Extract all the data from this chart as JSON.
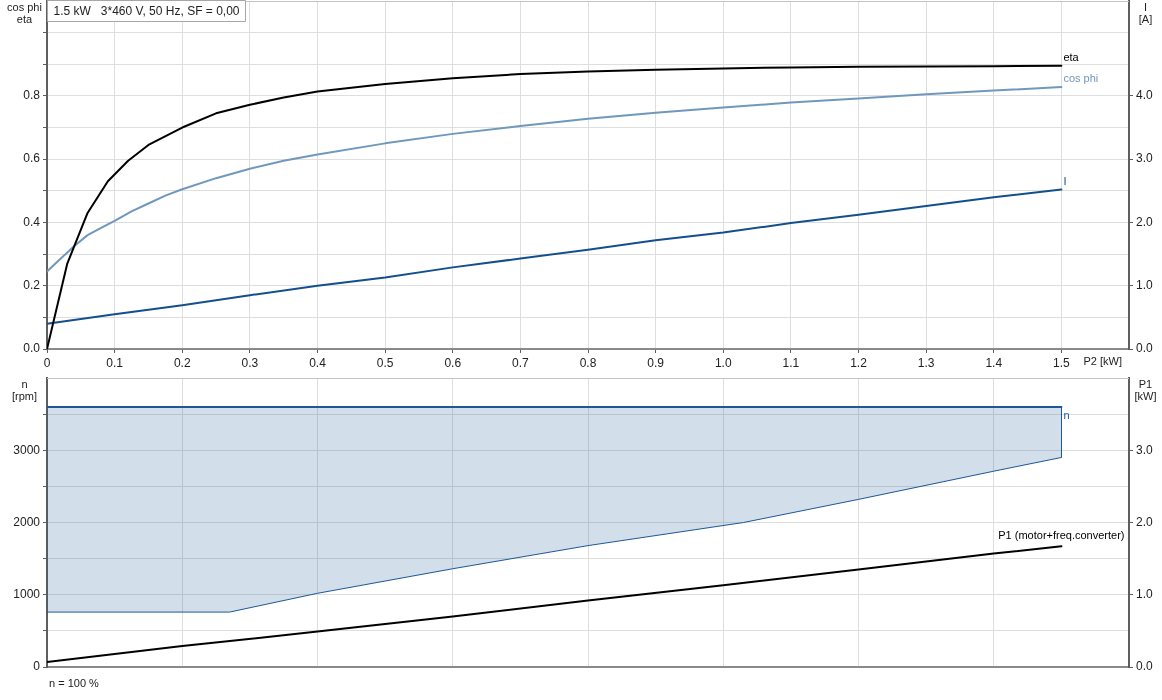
{
  "chart_data": [
    {
      "type": "line",
      "title": "1.5 kW   3*460 V, 50 Hz, SF = 0,00",
      "xlabel": "P2 [kW]",
      "ylabel": "cos phi\neta",
      "y2label": "I\n[A]",
      "xlim": [
        0,
        1.6
      ],
      "xticks": [
        0,
        0.1,
        0.2,
        0.3,
        0.4,
        0.5,
        0.6,
        0.7,
        0.8,
        0.9,
        {
          "value": 1,
          "label": "1.0"
        },
        1.1,
        1.2,
        1.3,
        1.4,
        1.5
      ],
      "ylim": [
        0,
        1.1
      ],
      "yticks": [
        {
          "value": 0,
          "label": "0.0"
        },
        {
          "value": 0.1,
          "label": null
        },
        0.2,
        {
          "value": 0.3,
          "label": null
        },
        0.4,
        {
          "value": 0.5,
          "label": null
        },
        0.6,
        {
          "value": 0.7,
          "label": null
        },
        0.8,
        {
          "value": 0.9,
          "label": null
        },
        {
          "value": 1,
          "label": null
        }
      ],
      "y2lim": [
        0,
        5.5
      ],
      "y2ticks": [
        {
          "value": 0,
          "label": "0.0"
        },
        {
          "value": 1,
          "label": "1.0"
        },
        {
          "value": 2,
          "label": "2.0"
        },
        {
          "value": 3,
          "label": "3.0"
        },
        {
          "value": 4,
          "label": "4.0"
        }
      ],
      "grid": true,
      "marker": "none",
      "series": [
        {
          "name": "eta",
          "color": "#000000",
          "x": [
            0,
            0.03,
            0.06,
            0.09,
            0.12,
            0.15,
            0.2,
            0.25,
            0.3,
            0.35,
            0.4,
            0.5,
            0.6,
            0.7,
            0.8,
            0.9,
            1.0,
            1.1,
            1.2,
            1.3,
            1.4,
            1.5
          ],
          "values": [
            0,
            0.27,
            0.43,
            0.53,
            0.595,
            0.645,
            0.7,
            0.745,
            0.772,
            0.795,
            0.814,
            0.838,
            0.856,
            0.869,
            0.877,
            0.883,
            0.887,
            0.89,
            0.892,
            0.893,
            0.894,
            0.895
          ]
        },
        {
          "name": "cos phi",
          "color": "#7098bd",
          "x": [
            0,
            0.02,
            0.04,
            0.06,
            0.08,
            0.1,
            0.125,
            0.15,
            0.175,
            0.2,
            0.25,
            0.3,
            0.35,
            0.4,
            0.5,
            0.6,
            0.7,
            0.8,
            0.9,
            1.0,
            1.1,
            1.2,
            1.3,
            1.4,
            1.5
          ],
          "values": [
            0.245,
            0.285,
            0.325,
            0.36,
            0.383,
            0.405,
            0.435,
            0.46,
            0.485,
            0.505,
            0.54,
            0.57,
            0.595,
            0.615,
            0.65,
            0.68,
            0.705,
            0.728,
            0.747,
            0.763,
            0.779,
            0.792,
            0.805,
            0.817,
            0.828
          ]
        },
        {
          "name": "I",
          "color": "#134f8e",
          "axis": "y2",
          "x": [
            0,
            0.1,
            0.2,
            0.3,
            0.4,
            0.5,
            0.6,
            0.7,
            0.8,
            0.9,
            1.0,
            1.1,
            1.2,
            1.3,
            1.4,
            1.5
          ],
          "values": [
            0.4,
            0.55,
            0.69,
            0.85,
            1.0,
            1.13,
            1.29,
            1.43,
            1.57,
            1.72,
            1.84,
            1.99,
            2.12,
            2.26,
            2.4,
            2.52
          ]
        }
      ]
    },
    {
      "type": "line",
      "ylabel": "n\n[rpm]",
      "y2label": "P1\n[kW]",
      "xlim": [
        0,
        1.6
      ],
      "xticks": [
        0,
        0.2,
        0.4,
        0.6,
        0.8,
        1,
        1.2,
        1.4
      ],
      "ylim": [
        0,
        4000
      ],
      "yticks": [
        0,
        {
          "value": 500,
          "label": null
        },
        1000,
        {
          "value": 1500,
          "label": null
        },
        2000,
        {
          "value": 2500,
          "label": null
        },
        3000,
        {
          "value": 3500,
          "label": null
        }
      ],
      "y2lim": [
        0,
        4
      ],
      "y2ticks": [
        {
          "value": 0,
          "label": "0.0"
        },
        {
          "value": 1,
          "label": "1.0"
        },
        {
          "value": 2,
          "label": "2.0"
        },
        {
          "value": 3,
          "label": "3.0"
        }
      ],
      "tick_labels": "y",
      "grid": true,
      "marker": "none",
      "annotations": [
        "n = 100 %"
      ],
      "series": [
        {
          "name": "n",
          "color": "#1d5895",
          "x": [
            0,
            0.27,
            0.4,
            0.6,
            0.8,
            1.03,
            1.2,
            1.4,
            1.5
          ],
          "values": [
            3600,
            3600,
            3600,
            3600,
            3600,
            3600,
            3600,
            3600,
            3600
          ],
          "lower": [
            760,
            760,
            1020,
            1360,
            1680,
            2000,
            2320,
            2710,
            2900
          ],
          "upper": [
            3600,
            3600,
            3600,
            3600,
            3600,
            3600,
            3600,
            3600,
            3600
          ]
        },
        {
          "color": "#1d5895",
          "x": [
            0,
            0.27,
            0.4,
            0.6,
            0.8,
            1.03,
            1.2,
            1.4,
            1.5
          ],
          "values": [
            760,
            760,
            1020,
            1360,
            1680,
            2000,
            2320,
            2710,
            2900
          ]
        },
        {
          "name": "P1 (motor+freq.converter)",
          "color": "#000000",
          "axis": "y2",
          "x": [
            0,
            0.2,
            0.4,
            0.6,
            0.8,
            1.0,
            1.2,
            1.4,
            1.5
          ],
          "values": [
            0.07,
            0.29,
            0.49,
            0.7,
            0.92,
            1.13,
            1.35,
            1.57,
            1.67
          ]
        }
      ]
    }
  ]
}
